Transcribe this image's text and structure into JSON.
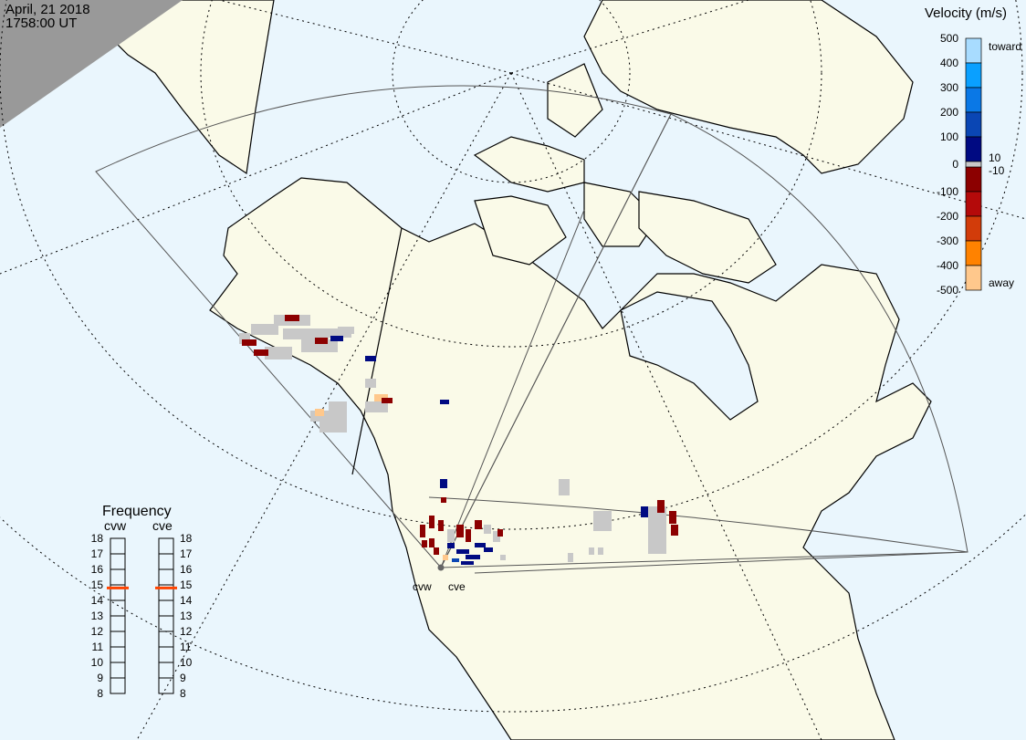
{
  "header": {
    "date": "April, 21 2018",
    "time": "1758:00 UT"
  },
  "colors": {
    "ocean": "#eaf6fd",
    "land": "#fafae8",
    "night": "#999999",
    "ground_scatter": "#c8c8c8",
    "freq_marker": "#ff4400"
  },
  "velocity_scale": {
    "title": "Velocity (m/s)",
    "ticks": [
      "500",
      "400",
      "300",
      "200",
      "100",
      "0",
      "-100",
      "-200",
      "-300",
      "-400",
      "-500"
    ],
    "toward_label": "toward",
    "away_label": "away",
    "gs_upper": "10",
    "gs_lower": "-10",
    "bands": [
      "#a8dcff",
      "#0aa0ff",
      "#0a78e6",
      "#0a46b4",
      "#000a82",
      "#8c0000",
      "#b40a0a",
      "#d23c0a",
      "#ff8200",
      "#ffc88c"
    ]
  },
  "frequency_panel": {
    "title": "Frequency",
    "ticks": [
      "18",
      "17",
      "16",
      "15",
      "14",
      "13",
      "12",
      "11",
      "10",
      "9",
      "8"
    ],
    "radars": [
      {
        "name": "cvw",
        "frequency_mhz": 14.8
      },
      {
        "name": "cve",
        "frequency_mhz": 14.8
      }
    ]
  },
  "radar_sites": [
    {
      "name": "cvw"
    },
    {
      "name": "cve"
    }
  ]
}
